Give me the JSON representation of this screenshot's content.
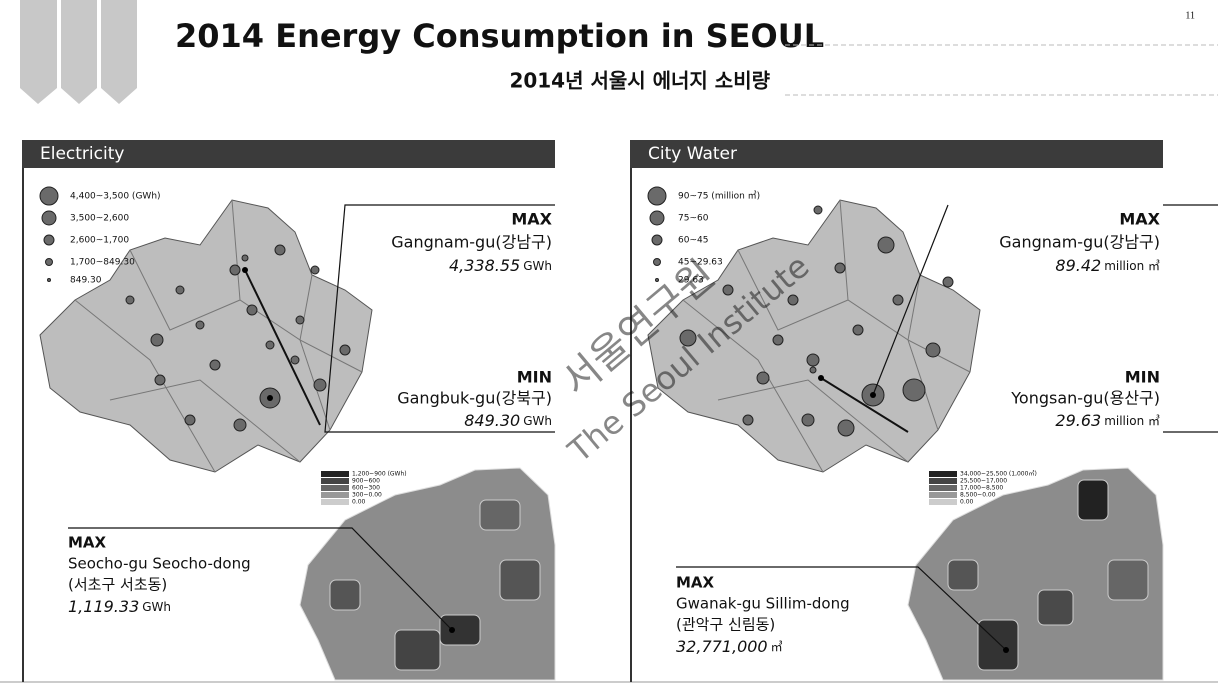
{
  "page_number": "11",
  "header": {
    "title": "2014 Energy Consumption in SEOUL",
    "subtitle": "2014년 서울시 에너지 소비량"
  },
  "watermark": {
    "korean": "서울연구원",
    "english": "The Seoul Institute"
  },
  "panels": [
    {
      "title": "Electricity",
      "legend": [
        "4,400~3,500 (GWh)",
        "3,500~2,600",
        "2,600~1,700",
        "1,700~849.30",
        "849.30"
      ],
      "max": {
        "label": "MAX",
        "district": "Gangnam-gu(강남구)",
        "value": "4,338.55",
        "unit": "GWh"
      },
      "min": {
        "label": "MIN",
        "district": "Gangbuk-gu(강북구)",
        "value": "849.30",
        "unit": "GWh"
      },
      "detail_legend": [
        "1,200~900  (GWh)",
        "900~600",
        "600~300",
        "300~0.00",
        "0.00"
      ],
      "detail_max": {
        "label": "MAX",
        "name": "Seocho-gu Seocho-dong",
        "name_korean": "(서초구 서초동)",
        "value": "1,119.33",
        "unit": "GWh"
      }
    },
    {
      "title": "City Water",
      "legend": [
        "90~75 (million ㎥)",
        "75~60",
        "60~45",
        "45~29.63",
        "29.63"
      ],
      "max": {
        "label": "MAX",
        "district": "Gangnam-gu(강남구)",
        "value": "89.42",
        "unit": "million ㎥"
      },
      "min": {
        "label": "MIN",
        "district": "Yongsan-gu(용산구)",
        "value": "29.63",
        "unit": "million ㎥"
      },
      "detail_legend": [
        "34,000~25,500  (1,000㎥)",
        "25,500~17,000",
        "17,000~8,500",
        "8,500~0.00",
        "0.00"
      ],
      "detail_max": {
        "label": "MAX",
        "name": "Gwanak-gu Sillim-dong",
        "name_korean": "(관악구 신림동)",
        "value": "32,771,000",
        "unit": "㎥"
      }
    }
  ]
}
